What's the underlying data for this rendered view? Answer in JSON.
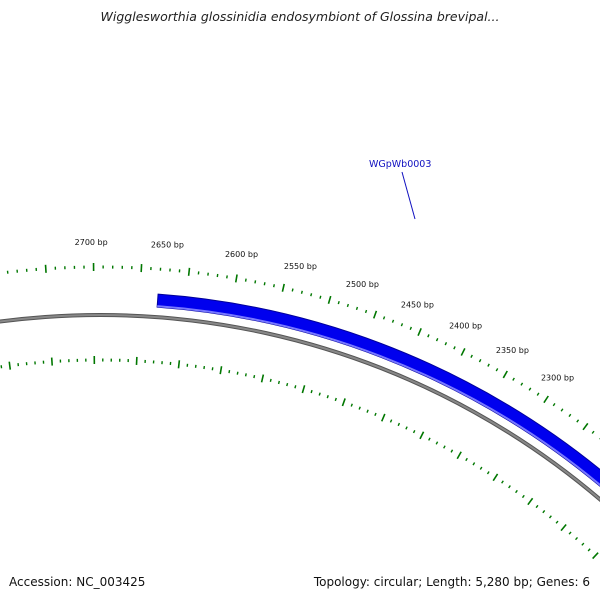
{
  "title": "Wigglesworthia glossinidia endosymbiont of Glossina brevipal...",
  "footer": {
    "accession_label": "Accession: NC_003425",
    "summary": "Topology: circular; Length: 5,280 bp; Genes: 6"
  },
  "colors": {
    "gene_fill": "#0000ee",
    "gene_edge": "#000099",
    "gene_inner_edge": "#7777ff",
    "backbone": "#888888",
    "backbone_edge": "#555555",
    "ticks": "#007700",
    "gene_label": "#1010c0"
  },
  "gene": {
    "label": "WGpWb0003"
  },
  "scale_labels": [
    "2300 bp",
    "2350 bp",
    "2400 bp",
    "2450 bp",
    "2500 bp",
    "2550 bp",
    "2600 bp",
    "2650 bp",
    "2700 bp"
  ]
}
